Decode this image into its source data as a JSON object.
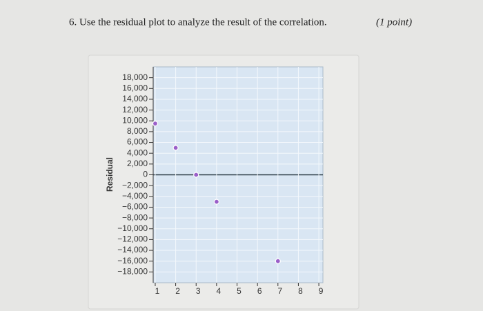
{
  "question": {
    "text": "6. Use the residual plot to analyze the result of the correlation.",
    "points": "(1 point)"
  },
  "chart_data": {
    "type": "scatter",
    "y_label": "Residual",
    "x": [
      1,
      2,
      3,
      4,
      7
    ],
    "values": [
      9500,
      5000,
      0,
      -5000,
      -16000
    ],
    "color": "#9a5fc9",
    "xlim": [
      0.9,
      9.2
    ],
    "xticks": [
      1,
      2,
      3,
      4,
      5,
      6,
      7,
      8,
      9
    ],
    "ylim": [
      -20000,
      20000
    ],
    "yticks": [
      {
        "value": 18000,
        "label": "18,000"
      },
      {
        "value": 16000,
        "label": "16,000"
      },
      {
        "value": 14000,
        "label": "14,000"
      },
      {
        "value": 12000,
        "label": "12,000"
      },
      {
        "value": 10000,
        "label": "10,000"
      },
      {
        "value": 8000,
        "label": "8,000"
      },
      {
        "value": 6000,
        "label": "6,000"
      },
      {
        "value": 4000,
        "label": "4,000"
      },
      {
        "value": 2000,
        "label": "2,000"
      },
      0,
      {
        "value": -2000,
        "label": "−2,000"
      },
      {
        "value": -4000,
        "label": "−4,000"
      },
      {
        "value": -6000,
        "label": "−6,000"
      },
      {
        "value": -8000,
        "label": "−8,000"
      },
      {
        "value": -10000,
        "label": "−10,000"
      },
      {
        "value": -12000,
        "label": "−12,000"
      },
      {
        "value": -14000,
        "label": "−14,000"
      },
      {
        "value": -16000,
        "label": "−16,000"
      },
      {
        "value": -18000,
        "label": "−18,000"
      }
    ],
    "grid": true
  }
}
